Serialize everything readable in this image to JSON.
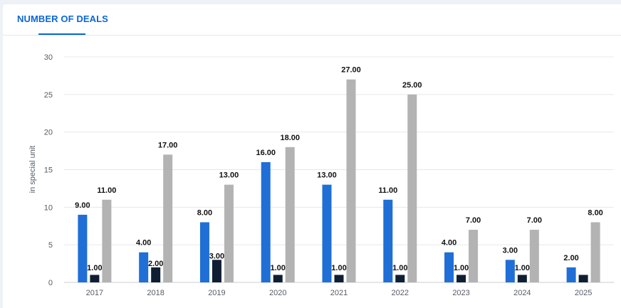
{
  "tabs": {
    "active_label": "NUMBER OF DEALS"
  },
  "colors": {
    "accent": "#0b66d8",
    "series1": "#1f6fd6",
    "series2": "#0f1f33",
    "series3": "#b3b3b3",
    "grid": "#e6e8eb"
  },
  "chart_data": {
    "type": "bar",
    "title": "",
    "xlabel": "",
    "ylabel": "in special unit",
    "ylim": [
      0,
      30
    ],
    "yticks": [
      "0",
      "5",
      "10",
      "15",
      "20",
      "25",
      "30"
    ],
    "grid": true,
    "categories": [
      "2017",
      "2018",
      "2019",
      "2020",
      "2021",
      "2022",
      "2023",
      "2024",
      "2025"
    ],
    "series": [
      {
        "values": [
          9,
          4,
          8,
          16,
          13,
          11,
          4,
          3,
          2
        ],
        "labels": [
          "9.00",
          "4.00",
          "8.00",
          "16.00",
          "13.00",
          "11.00",
          "4.00",
          "3.00",
          "2.00"
        ]
      },
      {
        "values": [
          1,
          2,
          3,
          1,
          1,
          1,
          1,
          1,
          1
        ],
        "labels": [
          "1.00",
          "2.00",
          "3.00",
          "1.00",
          "1.00",
          "1.00",
          "1.00",
          "1.00",
          ""
        ]
      },
      {
        "values": [
          11,
          17,
          13,
          18,
          27,
          25,
          7,
          7,
          8
        ],
        "labels": [
          "11.00",
          "17.00",
          "13.00",
          "18.00",
          "27.00",
          "25.00",
          "7.00",
          "7.00",
          "8.00"
        ]
      }
    ]
  }
}
